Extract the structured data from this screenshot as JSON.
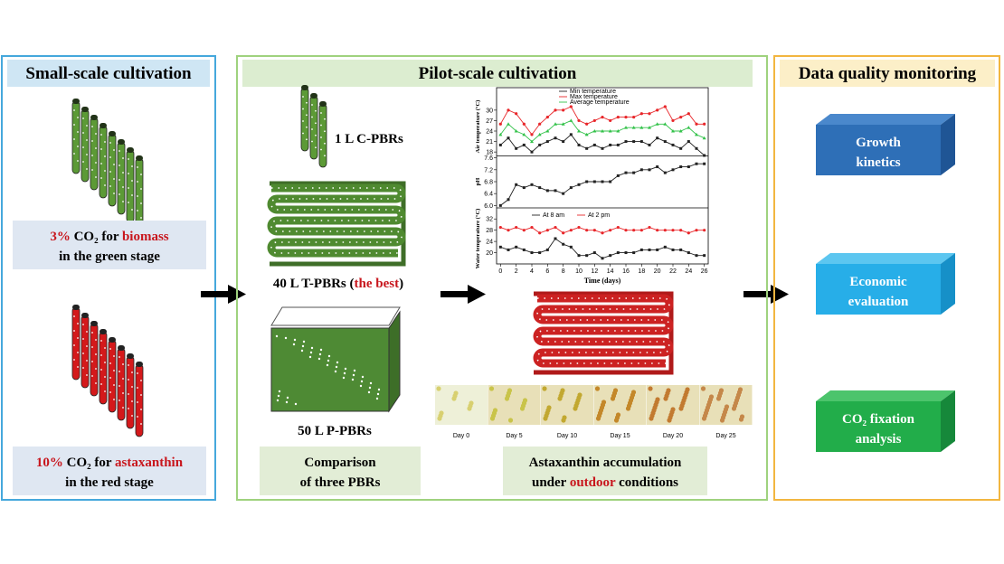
{
  "left": {
    "title": "Small-scale cultivation",
    "green_label": {
      "line1": [
        "3%",
        " CO₂ for ",
        "biomass"
      ],
      "line2": "in the green stage"
    },
    "red_label": {
      "line1": [
        "10%",
        " CO₂ for ",
        "astaxanthin"
      ],
      "line2": "in the red stage"
    }
  },
  "middle": {
    "title": "Pilot-scale cultivation",
    "c_pbr": "1 L C-PBRs",
    "t_pbr": [
      "40 L T-PBRs (",
      "the best",
      ")"
    ],
    "p_pbr": "50 L P-PBRs",
    "comparison": [
      "Comparison",
      "of three PBRs"
    ],
    "days": [
      "Day 0",
      "Day 5",
      "Day 10",
      "Day 15",
      "Day 20",
      "Day 25"
    ],
    "astaxanthin": {
      "line1": "Astaxanthin accumulation",
      "line2": [
        "under ",
        "outdoor",
        " conditions"
      ]
    }
  },
  "charts": {
    "x": [
      0,
      1,
      2,
      3,
      4,
      5,
      6,
      7,
      8,
      9,
      10,
      11,
      12,
      13,
      14,
      15,
      16,
      17,
      18,
      19,
      20,
      21,
      22,
      23,
      24,
      25,
      26
    ],
    "xlim": [
      -0.5,
      26.5
    ],
    "xticks": [
      0,
      2,
      4,
      6,
      8,
      10,
      12,
      14,
      16,
      18,
      20,
      22,
      24,
      26
    ],
    "xlabel": "Time (days)",
    "panels": [
      {
        "ylabel": "Air temperature (°C)",
        "ylim": [
          17,
          31
        ],
        "yticks": [
          18,
          21,
          24,
          27,
          30
        ],
        "series": [
          {
            "name": "Min temperature",
            "color": "#222222",
            "values": [
              20,
              22,
              19,
              20,
              18,
              20,
              21,
              22,
              21,
              23,
              20,
              19,
              20,
              19,
              20,
              20,
              21,
              21,
              21,
              20,
              22,
              21,
              20,
              19,
              21,
              19,
              17
            ]
          },
          {
            "name": "Max temperature",
            "color": "#e8262a",
            "values": [
              26,
              30,
              29,
              26,
              23,
              26,
              28,
              30,
              30,
              31,
              27,
              26,
              27,
              28,
              27,
              28,
              28,
              28,
              29,
              29,
              30,
              31,
              27,
              28,
              29,
              26,
              26
            ]
          },
          {
            "name": "Average temperature",
            "color": "#33c24a",
            "values": [
              23,
              26,
              24,
              23,
              21,
              23,
              24,
              26,
              26,
              27,
              24,
              23,
              24,
              24,
              24,
              24,
              25,
              25,
              25,
              25,
              26,
              26,
              24,
              24,
              25,
              23,
              22
            ]
          }
        ]
      },
      {
        "ylabel": "pH",
        "ylim": [
          5.95,
          7.65
        ],
        "yticks": [
          {
            "value": 6,
            "label": "6.0"
          },
          6.4,
          6.8,
          7.2,
          7.6
        ],
        "series": [
          {
            "name": "pH",
            "color": "#222222",
            "values": [
              6.0,
              6.2,
              6.7,
              6.6,
              6.7,
              6.6,
              6.5,
              6.5,
              6.4,
              6.6,
              6.7,
              6.8,
              6.8,
              6.8,
              6.8,
              7.0,
              7.1,
              7.1,
              7.2,
              7.2,
              7.3,
              7.1,
              7.2,
              7.3,
              7.3,
              7.4,
              7.4
            ]
          }
        ]
      },
      {
        "ylabel": "Water temperature (°C)",
        "ylim": [
          16,
          34
        ],
        "yticks": [
          20,
          24,
          28,
          32
        ],
        "series": [
          {
            "name": "At 8 am",
            "color": "#222222",
            "values": [
              22,
              21,
              22,
              21,
              20,
              20,
              21,
              25,
              23,
              22,
              19,
              19,
              20,
              18,
              19,
              20,
              20,
              20,
              21,
              21,
              21,
              22,
              21,
              21,
              20,
              19,
              19
            ]
          },
          {
            "name": "At 2 pm",
            "color": "#e8262a",
            "values": [
              29,
              28,
              29,
              28,
              29,
              27,
              28,
              29,
              27,
              28,
              29,
              28,
              28,
              27,
              28,
              29,
              28,
              28,
              28,
              29,
              28,
              28,
              28,
              28,
              27,
              28,
              28
            ]
          }
        ]
      }
    ]
  },
  "right": {
    "title": "Data quality monitoring",
    "boxes": [
      [
        "Growth",
        "kinetics"
      ],
      [
        "Economic",
        "evaluation"
      ],
      [
        "CO₂ fixation",
        "analysis"
      ]
    ]
  }
}
